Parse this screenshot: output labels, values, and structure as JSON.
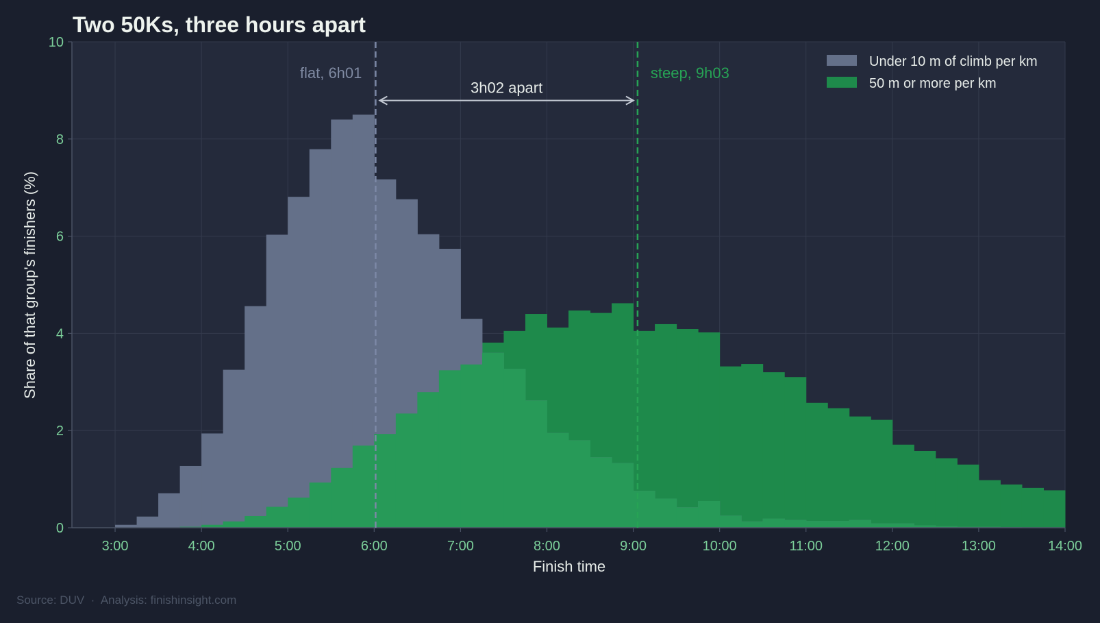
{
  "chart_data": {
    "type": "histogram",
    "title": "Two 50Ks, three hours apart",
    "xlabel": "Finish time",
    "ylabel": "Share of that group's finishers (%)",
    "bin_width_minutes": 15,
    "xlim": [
      "2:30",
      "14:00"
    ],
    "ylim": [
      0,
      10
    ],
    "x_ticks": [
      "3:00",
      "4:00",
      "5:00",
      "6:00",
      "7:00",
      "8:00",
      "9:00",
      "10:00",
      "11:00",
      "12:00",
      "13:00",
      "14:00"
    ],
    "y_ticks": [
      "0",
      "2",
      "4",
      "6",
      "8",
      "10"
    ],
    "grid": true,
    "legend_position": "top-right",
    "series": [
      {
        "name": "Under 10 m of climb per km",
        "color": "#647089",
        "bin_starts": [
          "3:00",
          "3:15",
          "3:30",
          "3:45",
          "4:00",
          "4:15",
          "4:30",
          "4:45",
          "5:00",
          "5:15",
          "5:30",
          "5:45",
          "6:00",
          "6:15",
          "6:30",
          "6:45",
          "7:00",
          "7:15",
          "7:30",
          "7:45",
          "8:00",
          "8:15",
          "8:30",
          "8:45",
          "9:00",
          "9:15",
          "9:30",
          "9:45",
          "10:00",
          "10:15",
          "10:30",
          "10:45",
          "11:00",
          "11:15",
          "11:30",
          "11:45",
          "12:00",
          "12:15",
          "12:30",
          "12:45",
          "13:00",
          "13:15",
          "13:30",
          "13:45"
        ],
        "values": [
          0.06,
          0.23,
          0.71,
          1.27,
          1.94,
          3.25,
          4.56,
          6.03,
          6.81,
          7.79,
          8.4,
          8.5,
          7.17,
          6.76,
          6.04,
          5.74,
          4.3,
          3.6,
          3.27,
          2.62,
          1.95,
          1.8,
          1.45,
          1.33,
          0.76,
          0.6,
          0.42,
          0.55,
          0.25,
          0.13,
          0.19,
          0.16,
          0.14,
          0.14,
          0.16,
          0.09,
          0.09,
          0.05,
          0.03,
          0.02,
          0.02,
          0.01,
          0,
          0
        ]
      },
      {
        "name": "50 m or more per km",
        "color": "#1e8a4b",
        "bin_starts": [
          "3:00",
          "3:15",
          "3:30",
          "3:45",
          "4:00",
          "4:15",
          "4:30",
          "4:45",
          "5:00",
          "5:15",
          "5:30",
          "5:45",
          "6:00",
          "6:15",
          "6:30",
          "6:45",
          "7:00",
          "7:15",
          "7:30",
          "7:45",
          "8:00",
          "8:15",
          "8:30",
          "8:45",
          "9:00",
          "9:15",
          "9:30",
          "9:45",
          "10:00",
          "10:15",
          "10:30",
          "10:45",
          "11:00",
          "11:15",
          "11:30",
          "11:45",
          "12:00",
          "12:15",
          "12:30",
          "12:45",
          "13:00",
          "13:15",
          "13:30",
          "13:45"
        ],
        "values": [
          0,
          0,
          0,
          0.02,
          0.06,
          0.13,
          0.24,
          0.43,
          0.62,
          0.93,
          1.23,
          1.69,
          1.93,
          2.35,
          2.79,
          3.24,
          3.36,
          3.81,
          4.05,
          4.4,
          4.12,
          4.47,
          4.42,
          4.62,
          4.05,
          4.19,
          4.09,
          4.02,
          3.32,
          3.37,
          3.2,
          3.1,
          2.57,
          2.46,
          2.29,
          2.22,
          1.71,
          1.58,
          1.43,
          1.3,
          0.98,
          0.89,
          0.82,
          0.77
        ]
      }
    ],
    "annotations": {
      "flat_median": {
        "x": "6:01",
        "label": "flat, 6h01"
      },
      "steep_median": {
        "x": "9:03",
        "label": "steep, 9h03"
      },
      "gap": {
        "label": "3h02 apart",
        "at_y": 8.8
      }
    },
    "colors": {
      "flat": "#647089",
      "flat_line": "#7c88a6",
      "steep": "#1e8a4b",
      "steep_line": "#27a355",
      "overlap": "#279a58"
    }
  },
  "source": "Source: DUV  ·  Analysis: finishinsight.com"
}
